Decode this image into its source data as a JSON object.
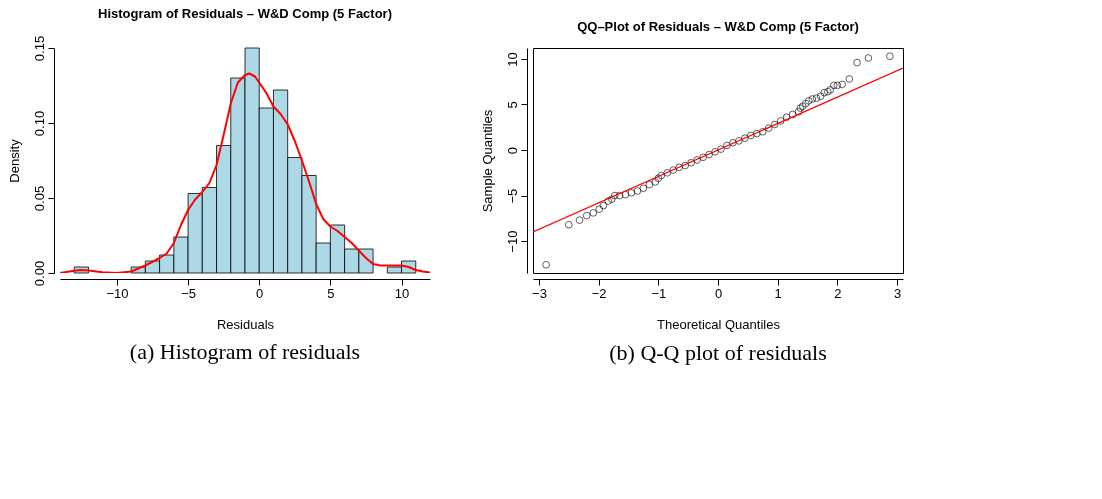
{
  "chart_data": [
    {
      "type": "histogram",
      "title": "Histogram of Residuals – W&D Comp (5 Factor)",
      "xlabel": "Residuals",
      "ylabel": "Density",
      "color": "#add8e6",
      "bins": [
        -13,
        -12,
        -11,
        -10,
        -9,
        -8,
        -7,
        -6,
        -5,
        -4,
        -3,
        -2,
        -1,
        0,
        1,
        2,
        3,
        4,
        5,
        6,
        7,
        8,
        9,
        10,
        11
      ],
      "values": [
        0.004,
        0,
        0,
        0,
        0.004,
        0.008,
        0.012,
        0.024,
        0.053,
        0.057,
        0.085,
        0.13,
        0.15,
        0.11,
        0.122,
        0.077,
        0.065,
        0.02,
        0.032,
        0.016,
        0.016,
        0,
        0.004,
        0.008
      ],
      "series": [
        {
          "type": "line",
          "color": "#ff0000",
          "x": [
            -14,
            -13,
            -12.5,
            -12,
            -11,
            -10,
            -9,
            -8,
            -7,
            -6.5,
            -6,
            -5.5,
            -5,
            -4.5,
            -4,
            -3.5,
            -3,
            -2.5,
            -2,
            -1.5,
            -1,
            -0.7,
            -0.3,
            0,
            0.5,
            1,
            1.5,
            2,
            2.5,
            3,
            3.5,
            4,
            4.5,
            5,
            5.5,
            6,
            6.5,
            7,
            7.5,
            8,
            8.5,
            9,
            9.5,
            10,
            10.5,
            11,
            11.5,
            12
          ],
          "values": [
            0.0,
            0.0015,
            0.002,
            0.0017,
            0.0005,
            0,
            0.001,
            0.005,
            0.01,
            0.013,
            0.02,
            0.032,
            0.042,
            0.049,
            0.054,
            0.06,
            0.072,
            0.092,
            0.113,
            0.127,
            0.132,
            0.133,
            0.131,
            0.127,
            0.12,
            0.111,
            0.106,
            0.099,
            0.088,
            0.075,
            0.061,
            0.046,
            0.036,
            0.031,
            0.028,
            0.024,
            0.02,
            0.015,
            0.01,
            0.006,
            0.005,
            0.005,
            0.005,
            0.005,
            0.004,
            0.002,
            0.001,
            0.0003
          ]
        }
      ],
      "xlim": [
        -14,
        12
      ],
      "xticks": [
        -10,
        -5,
        0,
        5,
        10
      ],
      "ylim": [
        0,
        0.15
      ],
      "yticks": [
        {
          "value": 0,
          "label": "0.00"
        },
        {
          "value": 0.05,
          "label": "0.05"
        },
        {
          "value": 0.1,
          "label": "0.10"
        },
        {
          "value": 0.15,
          "label": "0.15"
        }
      ],
      "grid": false,
      "annotations": [
        "(a) Histogram of residuals"
      ]
    },
    {
      "type": "scatter",
      "title": "QQ–Plot of Residuals – W&D Comp (5 Factor)",
      "xlabel": "Theoretical Quantiles",
      "ylabel": "Sample Quantiles",
      "series": [
        {
          "type": "scatter",
          "color": "#000000",
          "marker": "circle",
          "x": [
            -2.88,
            -2.5,
            -2.32,
            -2.2,
            -2.09,
            -1.99,
            -1.92,
            -1.84,
            -1.78,
            -1.73,
            -1.65,
            -1.55,
            -1.45,
            -1.35,
            -1.25,
            -1.15,
            -1.05,
            -1.0,
            -0.95,
            -0.85,
            -0.75,
            -0.65,
            -0.55,
            -0.45,
            -0.35,
            -0.25,
            -0.15,
            -0.05,
            0.05,
            0.15,
            0.25,
            0.35,
            0.45,
            0.55,
            0.65,
            0.75,
            0.85,
            0.95,
            1.05,
            1.15,
            1.25,
            1.35,
            1.38,
            1.42,
            1.47,
            1.52,
            1.58,
            1.65,
            1.72,
            1.78,
            1.84,
            1.88,
            1.94,
            2.0,
            2.08,
            2.2,
            2.33,
            2.52,
            2.88
          ],
          "values": [
            -12.6,
            -8.2,
            -7.7,
            -7.2,
            -6.9,
            -6.5,
            -6.1,
            -5.6,
            -5.4,
            -5.0,
            -5.0,
            -4.9,
            -4.7,
            -4.5,
            -4.2,
            -3.8,
            -3.5,
            -3.1,
            -2.8,
            -2.5,
            -2.2,
            -1.9,
            -1.7,
            -1.4,
            -1.1,
            -0.8,
            -0.5,
            -0.2,
            0.1,
            0.5,
            0.8,
            1.0,
            1.3,
            1.6,
            1.8,
            2.0,
            2.4,
            2.8,
            3.2,
            3.6,
            3.9,
            4.2,
            4.6,
            4.8,
            5.1,
            5.4,
            5.6,
            5.7,
            5.9,
            6.3,
            6.4,
            6.6,
            7.1,
            7.1,
            7.2,
            7.8,
            9.6,
            10.1,
            10.3
          ]
        },
        {
          "type": "line",
          "color": "#ff0000",
          "x": [
            -3.1,
            3.1
          ],
          "values": [
            -9.0,
            9.0
          ]
        }
      ],
      "xlim": [
        -3.1,
        3.1
      ],
      "xticks": [
        -3,
        -2,
        -1,
        0,
        1,
        2,
        3
      ],
      "ylim": [
        -13.5,
        11.2
      ],
      "yticks": [
        -10,
        -5,
        0,
        5,
        10
      ],
      "grid": false,
      "annotations": [
        "(b) Q-Q plot of residuals"
      ]
    }
  ]
}
